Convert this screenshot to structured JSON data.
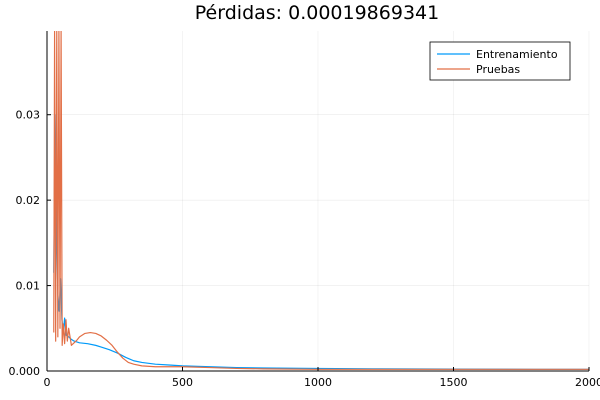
{
  "chart_data": {
    "type": "line",
    "title": "Pérdidas: 0.00019869341",
    "xlabel": "",
    "ylabel": "",
    "xlim": [
      0,
      2000
    ],
    "ylim": [
      0,
      0.0398
    ],
    "x_ticks": [
      0,
      500,
      1000,
      1500,
      2000
    ],
    "x_tick_labels": [
      "0",
      "500",
      "1000",
      "1500",
      "2000"
    ],
    "y_ticks": [
      0,
      0.01,
      0.02,
      0.03
    ],
    "y_tick_labels": [
      "0.000",
      "0.01",
      "0.02",
      "0.03"
    ],
    "grid": true,
    "legend_position": "top-right",
    "series": [
      {
        "name": "Entrenamiento",
        "color": "#009af9",
        "points": [
          [
            25,
            0.0115
          ],
          [
            30,
            0.03
          ],
          [
            35,
            0.018
          ],
          [
            40,
            0.009
          ],
          [
            45,
            0.007
          ],
          [
            50,
            0.0108
          ],
          [
            55,
            0.006
          ],
          [
            60,
            0.0045
          ],
          [
            65,
            0.0062
          ],
          [
            70,
            0.0042
          ],
          [
            80,
            0.004
          ],
          [
            90,
            0.0037
          ],
          [
            100,
            0.0035
          ],
          [
            120,
            0.0033
          ],
          [
            150,
            0.0032
          ],
          [
            180,
            0.003
          ],
          [
            200,
            0.0028
          ],
          [
            230,
            0.0025
          ],
          [
            260,
            0.0021
          ],
          [
            290,
            0.0016
          ],
          [
            320,
            0.0012
          ],
          [
            350,
            0.001
          ],
          [
            400,
            0.0008
          ],
          [
            450,
            0.0007
          ],
          [
            500,
            0.0006
          ],
          [
            600,
            0.0005
          ],
          [
            700,
            0.0004
          ],
          [
            800,
            0.00035
          ],
          [
            1000,
            0.0003
          ],
          [
            1200,
            0.00025
          ],
          [
            1500,
            0.00022
          ],
          [
            1800,
            0.0002
          ],
          [
            2000,
            0.0002
          ]
        ]
      },
      {
        "name": "Pruebas",
        "color": "#e26f46",
        "points": [
          [
            25,
            0.0045
          ],
          [
            28,
            0.0398
          ],
          [
            32,
            0.0035
          ],
          [
            36,
            0.0398
          ],
          [
            40,
            0.004
          ],
          [
            44,
            0.0398
          ],
          [
            48,
            0.005
          ],
          [
            52,
            0.0398
          ],
          [
            56,
            0.003
          ],
          [
            60,
            0.0055
          ],
          [
            65,
            0.0032
          ],
          [
            70,
            0.006
          ],
          [
            75,
            0.0035
          ],
          [
            80,
            0.005
          ],
          [
            90,
            0.003
          ],
          [
            100,
            0.0033
          ],
          [
            110,
            0.0036
          ],
          [
            120,
            0.004
          ],
          [
            140,
            0.0044
          ],
          [
            160,
            0.0045
          ],
          [
            180,
            0.0044
          ],
          [
            200,
            0.0041
          ],
          [
            220,
            0.0036
          ],
          [
            240,
            0.003
          ],
          [
            260,
            0.0022
          ],
          [
            280,
            0.0015
          ],
          [
            300,
            0.001
          ],
          [
            320,
            0.0008
          ],
          [
            350,
            0.0006
          ],
          [
            400,
            0.0005
          ],
          [
            450,
            0.0005
          ],
          [
            500,
            0.0005
          ],
          [
            600,
            0.0004
          ],
          [
            700,
            0.0003
          ],
          [
            800,
            0.00025
          ],
          [
            1000,
            0.0002
          ],
          [
            1500,
            0.0002
          ],
          [
            2000,
            0.0002
          ]
        ]
      }
    ]
  }
}
